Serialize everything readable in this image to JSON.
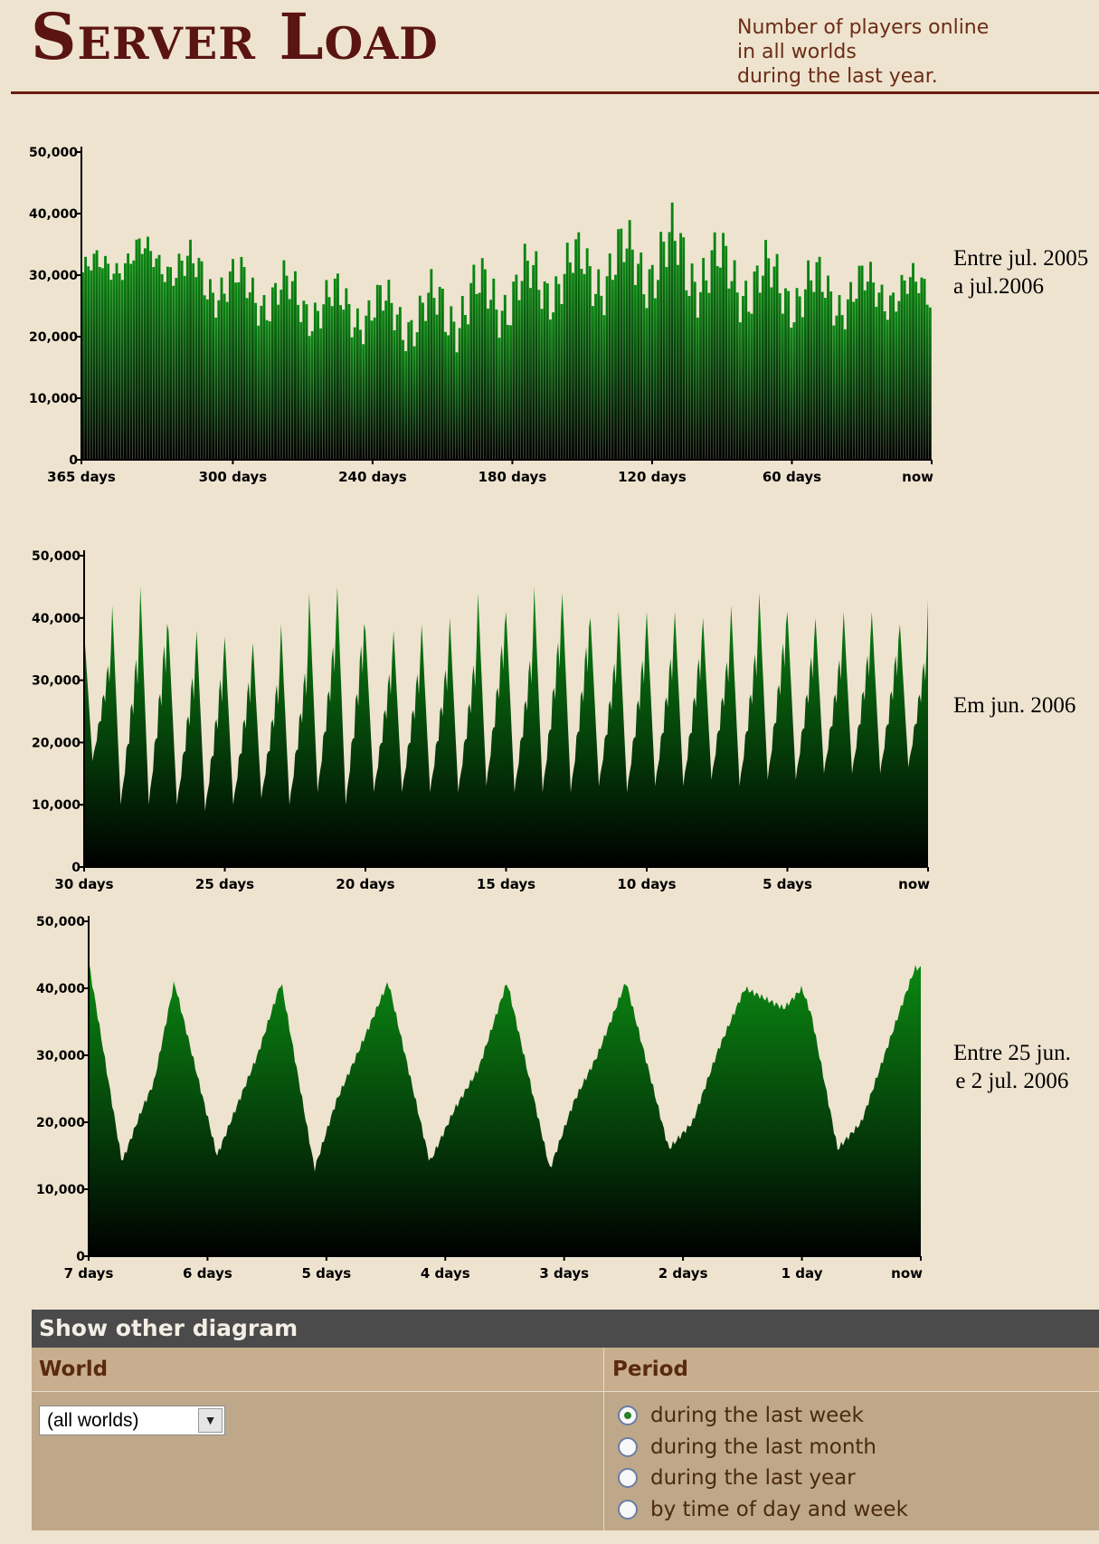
{
  "header": {
    "title": "Server Load",
    "subtitle_lines": [
      "Number of players online",
      "in all worlds",
      "during the last year."
    ]
  },
  "notes": {
    "year": [
      "Entre jul. 2005",
      "a jul.2006"
    ],
    "month": [
      "Em jun. 2006"
    ],
    "week": [
      "Entre 25 jun.",
      "e 2 jul. 2006"
    ]
  },
  "colors": {
    "bar_top": "#0b8a12",
    "bar_bottom": "#000000",
    "axis": "#000000",
    "title": "#5a1412"
  },
  "chart_data": [
    {
      "type": "area",
      "ylim": [
        0,
        50000
      ],
      "yticks": [
        0,
        10000,
        20000,
        30000,
        40000,
        50000
      ],
      "ytick_labels": [
        "0",
        "10,000",
        "20,000",
        "30,000",
        "40,000",
        "50,000"
      ],
      "xlim": [
        365,
        0
      ],
      "xticks": [
        365,
        300,
        240,
        180,
        120,
        60,
        0
      ],
      "xtick_labels": [
        "365 days",
        "300 days",
        "240 days",
        "180 days",
        "120 days",
        "60 days",
        "now"
      ],
      "series": [
        {
          "x_days_ago": [
            365,
            350,
            340,
            330,
            320,
            310,
            300,
            290,
            280,
            270,
            260,
            250,
            240,
            230,
            220,
            210,
            200,
            190,
            180,
            170,
            160,
            150,
            140,
            130,
            120,
            110,
            100,
            90,
            80,
            70,
            60,
            50,
            40,
            30,
            20,
            10,
            0
          ],
          "daily_min": [
            26000,
            28000,
            29000,
            28000,
            24000,
            22000,
            21000,
            20000,
            19000,
            18000,
            18000,
            17000,
            17000,
            16000,
            15000,
            15000,
            16000,
            17000,
            18000,
            19000,
            21000,
            22000,
            21000,
            22000,
            22000,
            21000,
            21000,
            20000,
            20000,
            19000,
            19000,
            19000,
            19000,
            20000,
            21000,
            22000,
            22000
          ],
          "daily_max": [
            34000,
            35000,
            37000,
            36000,
            36000,
            35000,
            34000,
            33000,
            33000,
            32000,
            31000,
            31000,
            30000,
            30000,
            30000,
            32000,
            33000,
            34000,
            35000,
            36000,
            37000,
            38000,
            39000,
            40000,
            41000,
            42000,
            40000,
            38000,
            37000,
            36000,
            35000,
            34000,
            33000,
            33000,
            33000,
            32000,
            32000
          ]
        }
      ]
    },
    {
      "type": "area",
      "ylim": [
        0,
        50000
      ],
      "yticks": [
        0,
        10000,
        20000,
        30000,
        40000,
        50000
      ],
      "ytick_labels": [
        "0",
        "10,000",
        "20,000",
        "30,000",
        "40,000",
        "50,000"
      ],
      "xlim": [
        30,
        0
      ],
      "xticks": [
        30,
        25,
        20,
        15,
        10,
        5,
        0
      ],
      "xtick_labels": [
        "30 days",
        "25 days",
        "20 days",
        "15 days",
        "10 days",
        "5 days",
        "now"
      ],
      "series": [
        {
          "daily_peak": [
            38000,
            42000,
            45000,
            38000,
            38000,
            37000,
            36000,
            39000,
            44000,
            45000,
            38000,
            38000,
            39000,
            40000,
            44000,
            41000,
            45000,
            44000,
            40000,
            41000,
            41000,
            41000,
            40000,
            42000,
            44000,
            41000,
            40000,
            41000,
            41000,
            39000,
            43000
          ],
          "daily_trough": [
            17000,
            10000,
            10000,
            10000,
            9000,
            10000,
            11000,
            10000,
            12000,
            10000,
            12000,
            12000,
            12000,
            12000,
            13000,
            12000,
            12000,
            12000,
            13000,
            12000,
            13000,
            13000,
            14000,
            13000,
            14000,
            14000,
            15000,
            15000,
            15000,
            16000,
            17000
          ]
        }
      ]
    },
    {
      "type": "area",
      "ylim": [
        0,
        50000
      ],
      "yticks": [
        0,
        10000,
        20000,
        30000,
        40000,
        50000
      ],
      "ytick_labels": [
        "0",
        "10,000",
        "20,000",
        "30,000",
        "40,000",
        "50,000"
      ],
      "xlim": [
        7,
        0
      ],
      "xticks": [
        7,
        6,
        5,
        4,
        3,
        2,
        1,
        0
      ],
      "xtick_labels": [
        "7 days",
        "6 days",
        "5 days",
        "4 days",
        "3 days",
        "2 days",
        "1 day",
        "now"
      ],
      "series": [
        {
          "x_days_ago": [
            7.0,
            6.72,
            6.55,
            6.45,
            6.28,
            5.92,
            5.74,
            5.58,
            5.38,
            5.1,
            4.92,
            4.72,
            4.48,
            4.13,
            3.92,
            3.72,
            3.48,
            3.12,
            2.92,
            2.72,
            2.48,
            2.12,
            1.92,
            1.7,
            1.48,
            1.15,
            1.0,
            0.92,
            0.7,
            0.5,
            0.15,
            0.05,
            0.0
          ],
          "players": [
            44000,
            14000,
            22000,
            26000,
            41000,
            15000,
            23000,
            30000,
            41000,
            13000,
            23000,
            31000,
            41000,
            14000,
            22000,
            28000,
            41000,
            13000,
            23000,
            30000,
            41000,
            16000,
            20000,
            31000,
            40000,
            37000,
            40000,
            36000,
            16000,
            20000,
            38000,
            43000,
            43000
          ]
        }
      ]
    }
  ],
  "form": {
    "title": "Show other diagram",
    "world_label": "World",
    "period_label": "Period",
    "world_value": "(all worlds)",
    "periods": [
      "during the last week",
      "during the last month",
      "during the last year",
      "by time of day and week"
    ],
    "selected_period": 0
  }
}
